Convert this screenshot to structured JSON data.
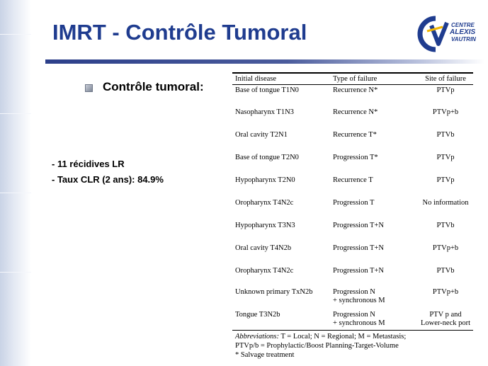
{
  "slide": {
    "title": "IMRT - Contrôle Tumoral",
    "bullet": "Contrôle tumoral:",
    "stats": [
      "- 11 récidives LR",
      "- Taux CLR (2 ans): 84.9%"
    ]
  },
  "logo": {
    "lines": [
      "CENTRE",
      "ALEXIS",
      "VAUTRIN"
    ],
    "colors": {
      "primary": "#1f3c8f",
      "accent": "#f2b600"
    }
  },
  "table": {
    "headers": [
      "Initial disease",
      "Type of failure",
      "Site of failure"
    ],
    "rows": [
      {
        "disease": "Base of tongue T1N0",
        "failure": [
          "Recurrence N*"
        ],
        "site": [
          "PTVp"
        ]
      },
      {
        "disease": "Nasopharynx T1N3",
        "failure": [
          "Recurrence N*"
        ],
        "site": [
          "PTVp+b"
        ]
      },
      {
        "disease": "Oral cavity T2N1",
        "failure": [
          "Recurrence T*"
        ],
        "site": [
          "PTVb"
        ]
      },
      {
        "disease": "Base of tongue T2N0",
        "failure": [
          "Progression T*"
        ],
        "site": [
          "PTVp"
        ]
      },
      {
        "disease": "Hypopharynx T2N0",
        "failure": [
          "Recurrence T"
        ],
        "site": [
          "PTVp"
        ]
      },
      {
        "disease": "Oropharynx T4N2c",
        "failure": [
          "Progression T"
        ],
        "site": [
          "No information"
        ]
      },
      {
        "disease": "Hypopharynx T3N3",
        "failure": [
          "Progression T+N"
        ],
        "site": [
          "PTVb"
        ]
      },
      {
        "disease": "Oral cavity T4N2b",
        "failure": [
          "Progression T+N"
        ],
        "site": [
          "PTVp+b"
        ]
      },
      {
        "disease": "Oropharynx T4N2c",
        "failure": [
          "Progression T+N"
        ],
        "site": [
          "PTVb"
        ]
      },
      {
        "disease": "Unknown primary TxN2b",
        "failure": [
          "Progression N",
          "+ synchronous M"
        ],
        "site": [
          "PTVp+b"
        ]
      },
      {
        "disease": "Tongue T3N2b",
        "failure": [
          "Progression N",
          "+ synchronous M"
        ],
        "site": [
          "PTV p and",
          "Lower-neck port"
        ]
      }
    ],
    "footnote": {
      "label": "Abbreviations:",
      "line1_rest": " T = Local; N = Regional; M = Metastasis;",
      "line2": "PTVp/b = Prophylactic/Boost  Planning-Target-Volume",
      "line3": "* Salvage treatment"
    }
  }
}
